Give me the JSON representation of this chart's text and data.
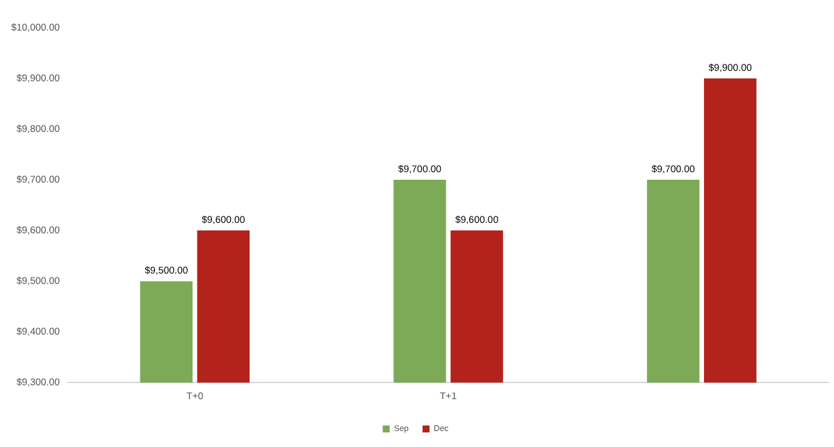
{
  "chart_data": {
    "type": "bar",
    "categories": [
      "T+0",
      "T+1",
      null
    ],
    "series": [
      {
        "name": "Sep",
        "color": "#7daa57",
        "values": [
          9500,
          9700,
          9700
        ],
        "value_labels": [
          "$9,500.00",
          "$9,700.00",
          "$9,700.00"
        ]
      },
      {
        "name": "Dec",
        "color": "#b3231b",
        "values": [
          9600,
          9600,
          9900
        ],
        "value_labels": [
          "$9,600.00",
          "$9,600.00",
          "$9,900.00"
        ]
      }
    ],
    "ylim": [
      9300,
      10000
    ],
    "yticks": [
      {
        "value": 9300,
        "label": "$9,300.00"
      },
      {
        "value": 9400,
        "label": "$9,400.00"
      },
      {
        "value": 9500,
        "label": "$9,500.00"
      },
      {
        "value": 9600,
        "label": "$9,600.00"
      },
      {
        "value": 9700,
        "label": "$9,700.00"
      },
      {
        "value": 9800,
        "label": "$9,800.00"
      },
      {
        "value": 9900,
        "label": "$9,900.00"
      },
      {
        "value": 10000,
        "label": "$10,000.00"
      }
    ],
    "grid": false,
    "legend": "bottom"
  }
}
